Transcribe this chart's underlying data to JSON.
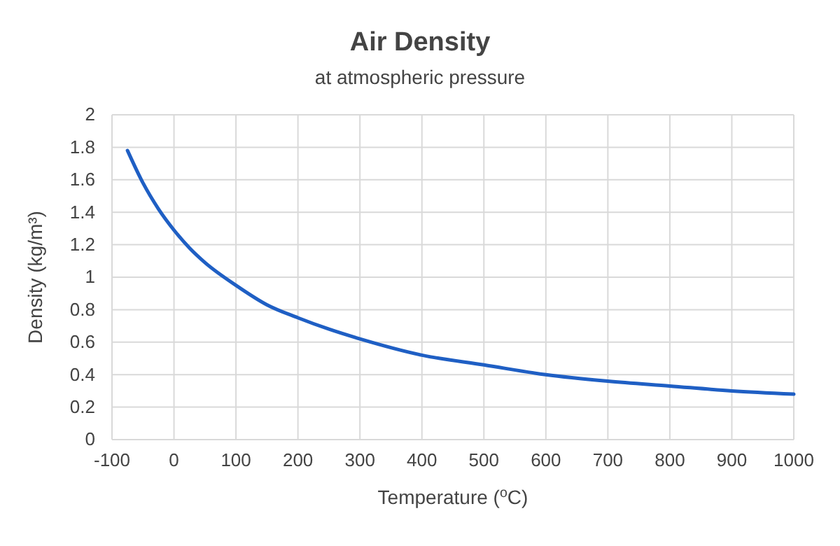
{
  "chart_data": {
    "type": "line",
    "title": "Air Density",
    "subtitle": "at atmospheric pressure",
    "xlabel": "Temperature ($^{o}$C)",
    "ylabel": "Density (kg/m³)",
    "x": [
      -75,
      -50,
      -25,
      0,
      25,
      50,
      100,
      150,
      200,
      250,
      300,
      400,
      500,
      600,
      700,
      800,
      900,
      1000
    ],
    "series": [
      {
        "color": "#1f5fc4",
        "values": [
          1.78,
          1.58,
          1.42,
          1.29,
          1.18,
          1.09,
          0.95,
          0.83,
          0.75,
          0.68,
          0.62,
          0.52,
          0.46,
          0.4,
          0.36,
          0.33,
          0.3,
          0.28
        ]
      }
    ],
    "xlim": [
      -100,
      1000
    ],
    "xticks": [
      -100,
      0,
      100,
      200,
      300,
      400,
      500,
      600,
      700,
      800,
      900,
      1000
    ],
    "ylim": [
      0,
      2
    ],
    "yticks": [
      0,
      0.2,
      0.4,
      0.6,
      0.8,
      1,
      1.2,
      1.4,
      1.6,
      1.8,
      2
    ],
    "grid": true,
    "marker": "none",
    "line_style": "solid"
  }
}
